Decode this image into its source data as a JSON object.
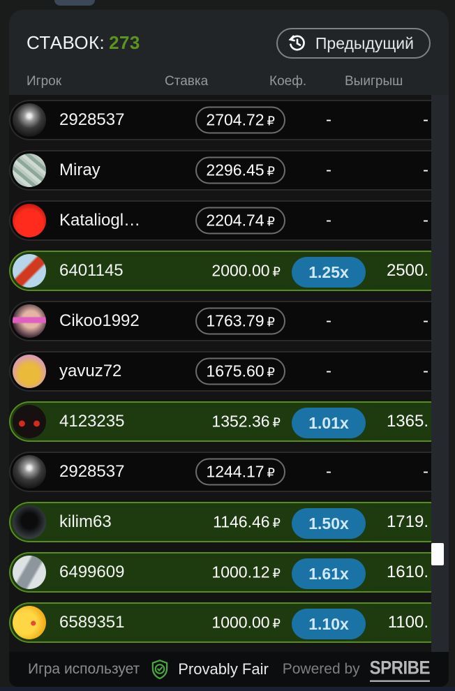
{
  "header": {
    "bets_label": "СТАВОК:",
    "bets_count": "273",
    "previous_button": "Предыдущий"
  },
  "columns": {
    "player": "Игрок",
    "bet": "Ставка",
    "coef": "Коеф.",
    "win": "Выигрыш"
  },
  "currency": "₽",
  "colors": {
    "accent_green": "#5c9420",
    "win_row_bg": "#1e3b10",
    "win_row_border": "#578e1b",
    "coef_pill_bg": "#1a72a5",
    "coef_pill_text": "#cfe9fb"
  },
  "rows": [
    {
      "player": "2928537",
      "bet": "2704.72",
      "coef": "-",
      "win": "-",
      "won": false,
      "avatar": "propeller"
    },
    {
      "player": "Miray",
      "bet": "2296.45",
      "coef": "-",
      "win": "-",
      "won": false,
      "avatar": "dollar-bills"
    },
    {
      "player": "Kataliogl…",
      "bet": "2204.74",
      "coef": "-",
      "win": "-",
      "won": false,
      "avatar": "red-sports-car"
    },
    {
      "player": "6401145",
      "bet": "2000.00",
      "coef": "1.25x",
      "win": "2500.",
      "won": true,
      "avatar": "red-jet"
    },
    {
      "player": "Cikoo1992",
      "bet": "1763.79",
      "coef": "-",
      "win": "-",
      "won": false,
      "avatar": "baby-sunglasses"
    },
    {
      "player": "yavuz72",
      "bet": "1675.60",
      "coef": "-",
      "win": "-",
      "won": false,
      "avatar": "lucky-cat"
    },
    {
      "player": "4123235",
      "bet": "1352.36",
      "coef": "1.01x",
      "win": "1365.",
      "won": true,
      "avatar": "dark-car"
    },
    {
      "player": "2928537",
      "bet": "1244.17",
      "coef": "-",
      "win": "-",
      "won": false,
      "avatar": "propeller"
    },
    {
      "player": "kilim63",
      "bet": "1146.46",
      "coef": "1.50x",
      "win": "1719.",
      "won": true,
      "avatar": "hooded-figure"
    },
    {
      "player": "6499609",
      "bet": "1000.12",
      "coef": "1.61x",
      "win": "1610.",
      "won": true,
      "avatar": "fighter-jet"
    },
    {
      "player": "6589351",
      "bet": "1000.00",
      "coef": "1.10x",
      "win": "1100.",
      "won": true,
      "avatar": "rubber-ducks"
    }
  ],
  "footer": {
    "uses_label": "Игра использует",
    "provably_fair": "Provably Fair",
    "powered_by": "Powered by",
    "brand": "SPRIBE"
  }
}
